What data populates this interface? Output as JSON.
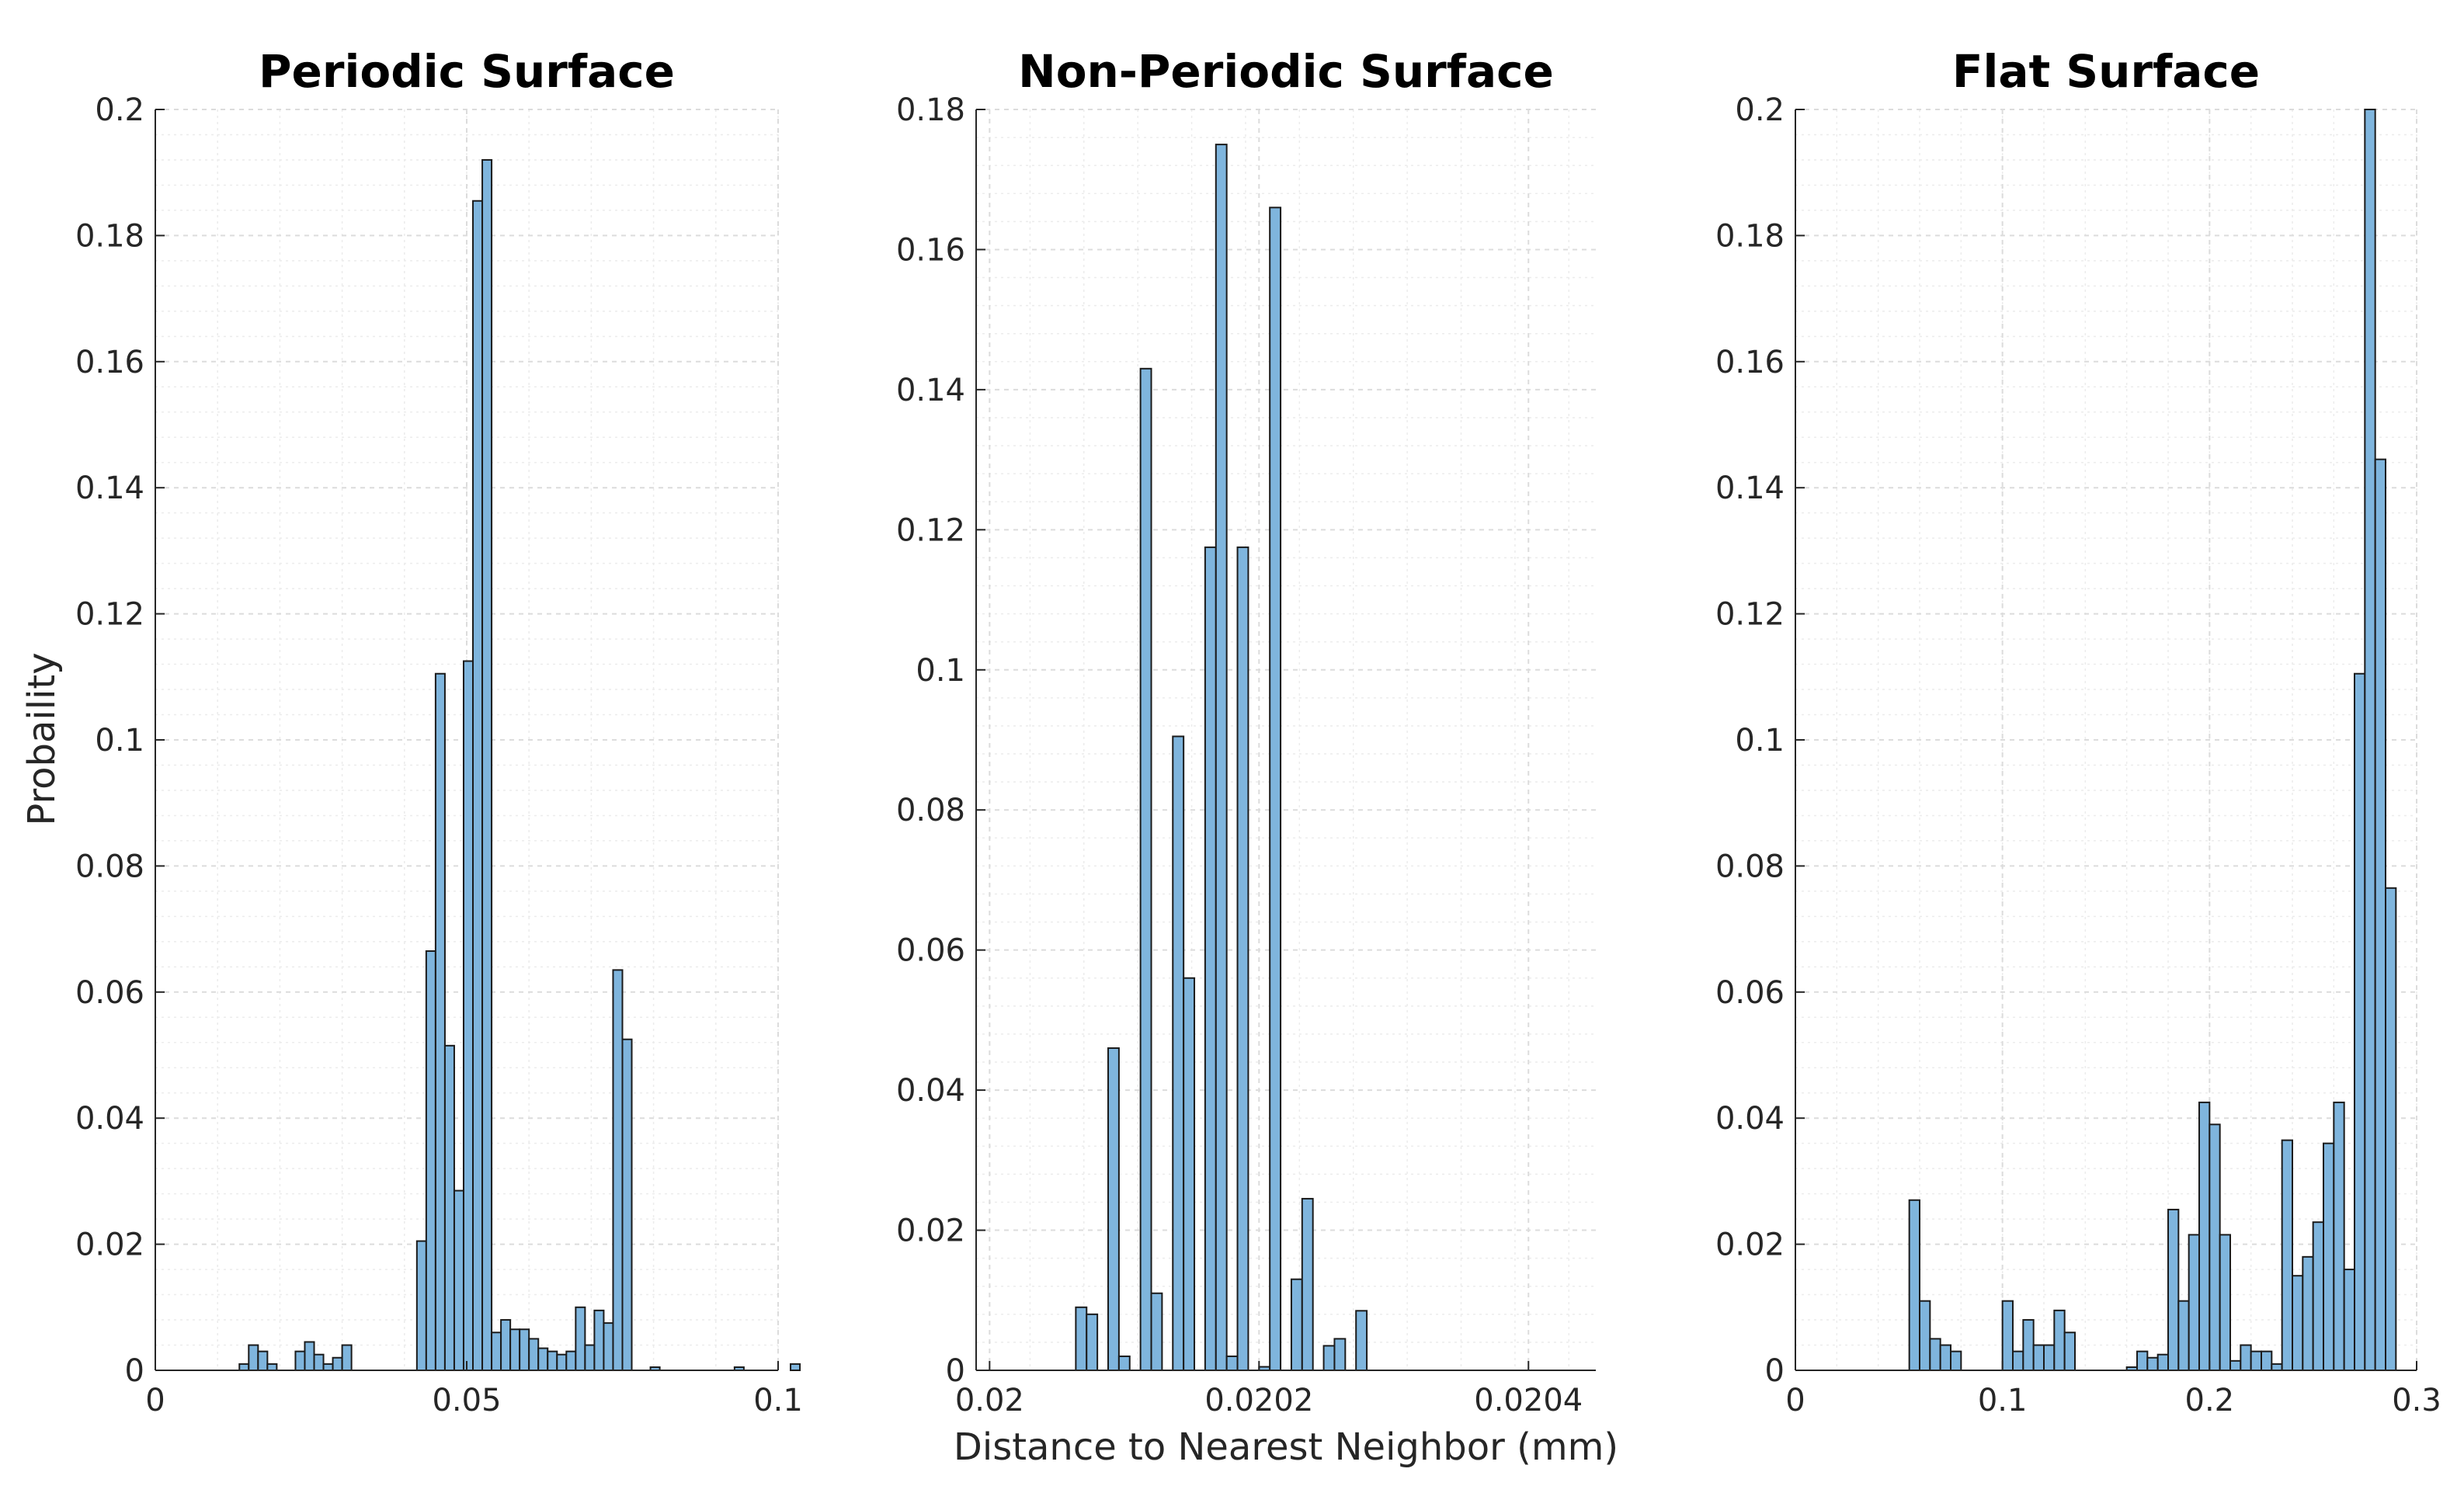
{
  "figure": {
    "xlabel": "Distance to Nearest Neighbor (mm)",
    "ylabel": "Probaility"
  },
  "colors": {
    "bar_fill": "#7fb5dd",
    "bar_edge": "#1b1b1b",
    "grid": "#dcdcdc",
    "axis": "#262626"
  },
  "chart_data": [
    {
      "type": "bar",
      "title": "Periodic Surface",
      "xlim": [
        0,
        0.1
      ],
      "ylim": [
        0,
        0.2
      ],
      "xticks": [
        0,
        0.05,
        0.1
      ],
      "xtick_labels": [
        "0",
        "0.05",
        "0.1"
      ],
      "yticks": [
        0,
        0.02,
        0.04,
        0.06,
        0.08,
        0.1,
        0.12,
        0.14,
        0.16,
        0.18,
        0.2
      ],
      "ytick_labels": [
        "0",
        "0.02",
        "0.04",
        "0.06",
        "0.08",
        "0.1",
        "0.12",
        "0.14",
        "0.16",
        "0.18",
        "0.2"
      ],
      "bin_start": 0.0135,
      "bin_width": 0.0015,
      "values": [
        0.001,
        0.004,
        0.003,
        0.001,
        0,
        0,
        0.003,
        0.0045,
        0.0025,
        0.001,
        0.002,
        0.004,
        0,
        0,
        0,
        0,
        0,
        0,
        0,
        0.0205,
        0.0665,
        0.1105,
        0.0515,
        0.0285,
        0.1125,
        0.1855,
        0.192,
        0.006,
        0.008,
        0.0065,
        0.0065,
        0.005,
        0.0035,
        0.003,
        0.0025,
        0.003,
        0.01,
        0.004,
        0.0095,
        0.0075,
        0.0635,
        0.0525,
        0,
        0,
        0.0005,
        0,
        0,
        0,
        0,
        0,
        0,
        0,
        0,
        0.0005,
        0,
        0,
        0,
        0,
        0,
        0.001
      ]
    },
    {
      "type": "bar",
      "title": "Non-Periodic Surface",
      "xlim": [
        0.01999,
        0.02045
      ],
      "ylim": [
        0,
        0.18
      ],
      "xticks": [
        0.02,
        0.0202,
        0.0204
      ],
      "xtick_labels": [
        "0.02",
        "0.0202",
        "0.0204"
      ],
      "yticks": [
        0,
        0.02,
        0.04,
        0.06,
        0.08,
        0.1,
        0.12,
        0.14,
        0.16,
        0.18
      ],
      "ytick_labels": [
        "0",
        "0.02",
        "0.04",
        "0.06",
        "0.08",
        "0.1",
        "0.12",
        "0.14",
        "0.16",
        "0.18"
      ],
      "bin_start": 0.020064,
      "bin_width": 8e-06,
      "values": [
        0.009,
        0.008,
        0,
        0.046,
        0.002,
        0,
        0.143,
        0.011,
        0,
        0.0905,
        0.056,
        0,
        0.1175,
        0.175,
        0.002,
        0.1175,
        0,
        0.0005,
        0.166,
        0,
        0.013,
        0.0245,
        0,
        0.0035,
        0.0045,
        0,
        0.0085
      ]
    },
    {
      "type": "bar",
      "title": "Flat Surface",
      "xlim": [
        0,
        0.3
      ],
      "ylim": [
        0,
        0.2
      ],
      "xticks": [
        0,
        0.1,
        0.2,
        0.3
      ],
      "xtick_labels": [
        "0",
        "0.1",
        "0.2",
        "0.3"
      ],
      "yticks": [
        0,
        0.02,
        0.04,
        0.06,
        0.08,
        0.1,
        0.12,
        0.14,
        0.16,
        0.18,
        0.2
      ],
      "ytick_labels": [
        "0",
        "0.02",
        "0.04",
        "0.06",
        "0.08",
        "0.1",
        "0.12",
        "0.14",
        "0.16",
        "0.18",
        "0.2"
      ],
      "bin_start": 0.055,
      "bin_width": 0.005,
      "values": [
        0.027,
        0.011,
        0.005,
        0.004,
        0.003,
        0,
        0,
        0,
        0,
        0.011,
        0.003,
        0.008,
        0.004,
        0.004,
        0.0095,
        0.006,
        0,
        0,
        0,
        0,
        0,
        0.0005,
        0.003,
        0.002,
        0.0025,
        0.0255,
        0.011,
        0.0215,
        0.0425,
        0.039,
        0.0215,
        0.0015,
        0.004,
        0.003,
        0.003,
        0.001,
        0.0365,
        0.015,
        0.018,
        0.0235,
        0.036,
        0.0425,
        0.016,
        0.1105,
        0.2,
        0.1445,
        0.0765
      ]
    }
  ]
}
